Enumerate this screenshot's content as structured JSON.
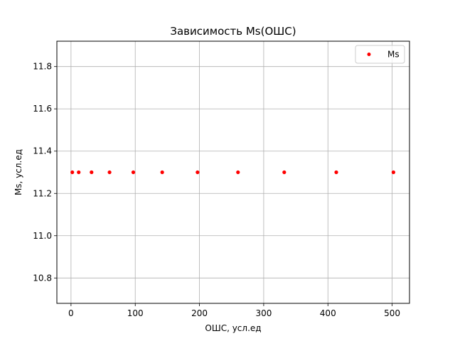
{
  "chart_data": {
    "type": "scatter",
    "title": "Зависимость Ms(ОШС)",
    "xlabel": "ОШС, усл.ед",
    "ylabel": "Ms, усл.ед",
    "xlim": [
      -22,
      527
    ],
    "ylim": [
      10.68,
      11.92
    ],
    "xticks": [
      0,
      100,
      200,
      300,
      400,
      500
    ],
    "yticks": [
      10.8,
      11.0,
      11.2,
      11.4,
      11.6,
      11.8
    ],
    "xtick_labels": [
      "0",
      "100",
      "200",
      "300",
      "400",
      "500"
    ],
    "ytick_labels": [
      "10.8",
      "11.0",
      "11.2",
      "11.4",
      "11.6",
      "11.8"
    ],
    "grid": true,
    "legend": "top-right",
    "series": [
      {
        "name": "Ms",
        "color": "#ff0000",
        "marker": "dot",
        "x": [
          2,
          12,
          32,
          60,
          97,
          142,
          197,
          260,
          332,
          413,
          502
        ],
        "y": [
          11.3,
          11.3,
          11.3,
          11.3,
          11.3,
          11.3,
          11.3,
          11.3,
          11.3,
          11.3,
          11.3
        ]
      }
    ]
  }
}
